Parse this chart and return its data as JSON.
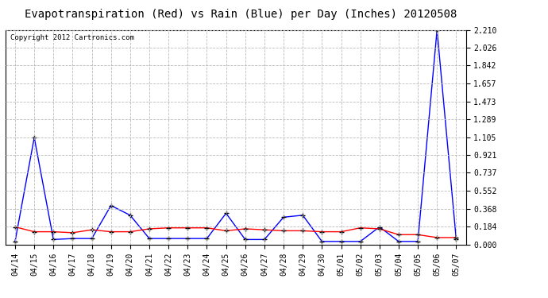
{
  "title": "Evapotranspiration (Red) vs Rain (Blue) per Day (Inches) 20120508",
  "copyright": "Copyright 2012 Cartronics.com",
  "x_labels": [
    "04/14",
    "04/15",
    "04/16",
    "04/17",
    "04/18",
    "04/19",
    "04/20",
    "04/21",
    "04/22",
    "04/23",
    "04/24",
    "04/25",
    "04/26",
    "04/27",
    "04/28",
    "04/29",
    "04/30",
    "05/01",
    "05/02",
    "05/03",
    "05/04",
    "05/05",
    "05/06",
    "05/07"
  ],
  "rain_blue": [
    0.03,
    1.1,
    0.05,
    0.06,
    0.06,
    0.4,
    0.3,
    0.06,
    0.06,
    0.06,
    0.06,
    0.32,
    0.05,
    0.05,
    0.28,
    0.3,
    0.03,
    0.03,
    0.03,
    0.18,
    0.03,
    0.03,
    2.21,
    0.05
  ],
  "et_red": [
    0.18,
    0.13,
    0.13,
    0.12,
    0.15,
    0.13,
    0.13,
    0.16,
    0.17,
    0.17,
    0.17,
    0.14,
    0.16,
    0.15,
    0.14,
    0.14,
    0.13,
    0.13,
    0.17,
    0.16,
    0.1,
    0.1,
    0.07,
    0.07
  ],
  "ylim": [
    0.0,
    2.21
  ],
  "yticks": [
    0.0,
    0.184,
    0.368,
    0.552,
    0.737,
    0.921,
    1.105,
    1.289,
    1.473,
    1.657,
    1.842,
    2.026,
    2.21
  ],
  "blue_color": "#0000ff",
  "red_color": "#ff0000",
  "bg_color": "#ffffff",
  "grid_color": "#bbbbbb",
  "title_fontsize": 10,
  "tick_fontsize": 7,
  "copyright_fontsize": 6.5
}
